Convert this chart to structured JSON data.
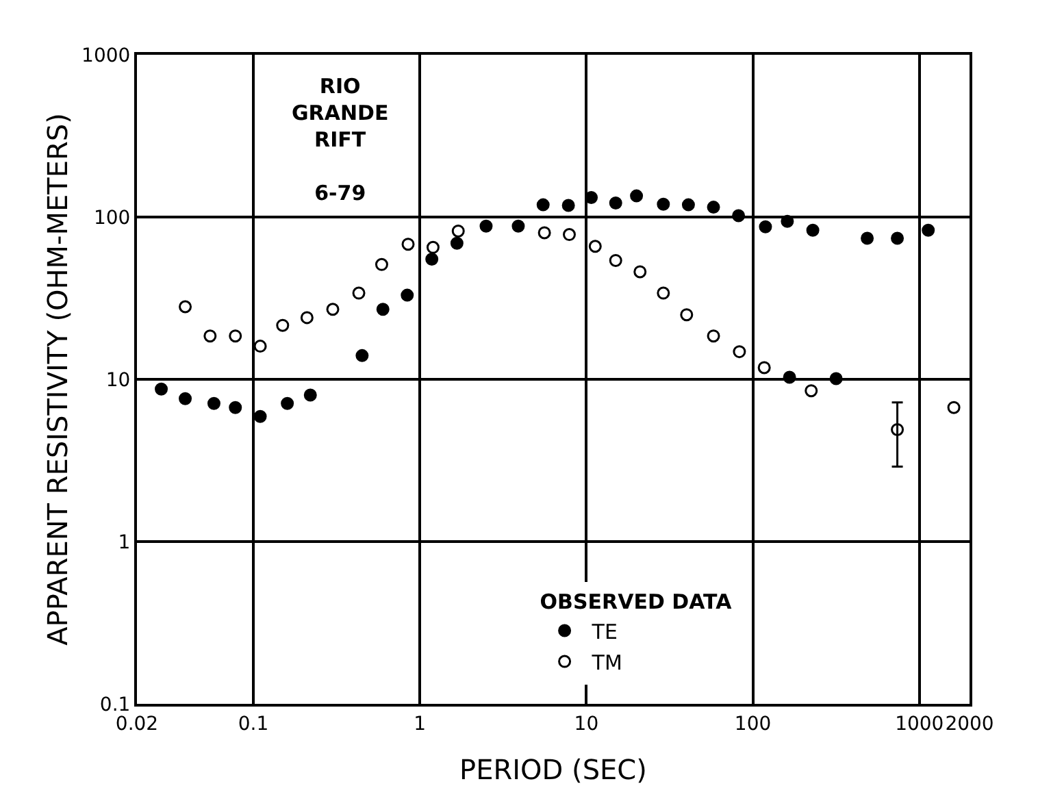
{
  "chart_data": {
    "type": "scatter",
    "xlabel": "PERIOD (SEC)",
    "ylabel": "APPARENT RESISTIVITY (OHM-METERS)",
    "legend_title": "OBSERVED DATA",
    "annotations": [
      "RIO\nGRANDE\nRIFT\n\n6-79"
    ],
    "log": "xy",
    "grid": true,
    "legend": "bottom",
    "marker": "circle",
    "xlim": [
      0.02,
      2000
    ],
    "xticks": [
      0.02,
      0.1,
      1,
      10,
      100,
      1000,
      2000
    ],
    "ylim": [
      0.1,
      1000
    ],
    "yticks": [
      0.1,
      1,
      10,
      100,
      1000
    ],
    "series": [
      {
        "name": "TE",
        "color": "#000000",
        "x": [
          0.028,
          0.039,
          0.058,
          0.078,
          0.11,
          0.16,
          0.22,
          0.45,
          0.6,
          0.84,
          1.18,
          1.67,
          2.5,
          3.9,
          5.5,
          7.8,
          10.7,
          15,
          20,
          29,
          41,
          58,
          82,
          119,
          161,
          166,
          229,
          316,
          486,
          737,
          1130
        ],
        "values": [
          8.7,
          7.6,
          7.1,
          6.7,
          5.9,
          7.1,
          8,
          14,
          27,
          33,
          55,
          69,
          88,
          88,
          119,
          118,
          132,
          122,
          135,
          120,
          119,
          115,
          102,
          87,
          94,
          10.3,
          83,
          10.1,
          74,
          74,
          83
        ]
      },
      {
        "name": "TM",
        "color": "#000000",
        "x": [
          0.039,
          0.055,
          0.078,
          0.11,
          0.15,
          0.21,
          0.3,
          0.43,
          0.59,
          0.85,
          1.2,
          1.7,
          5.6,
          7.9,
          11.3,
          15,
          21,
          29,
          40,
          58,
          83,
          117,
          224,
          737,
          1610
        ],
        "values": [
          28,
          18.5,
          18.5,
          16,
          21.5,
          24,
          27,
          34,
          51,
          68,
          65,
          82,
          80,
          78,
          66,
          54,
          46,
          34,
          25,
          18.5,
          14.8,
          11.8,
          8.5,
          4.9,
          6.7
        ],
        "errors": [
          null,
          null,
          null,
          null,
          null,
          null,
          null,
          null,
          null,
          null,
          null,
          null,
          null,
          null,
          null,
          null,
          null,
          null,
          null,
          null,
          null,
          null,
          null,
          [
            2.9,
            7.2
          ],
          null
        ]
      }
    ]
  }
}
